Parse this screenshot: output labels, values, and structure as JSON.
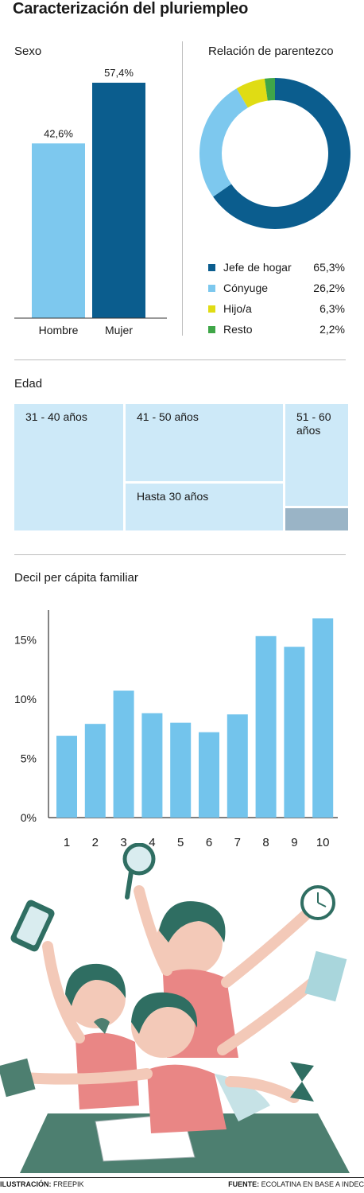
{
  "title": "Caracterización del pluriempleo",
  "sexo": {
    "label": "Sexo",
    "colors": [
      "#7dc8ee",
      "#0b5d8e"
    ],
    "chart_data": {
      "type": "bar",
      "categories": [
        "Hombre",
        "Mujer"
      ],
      "values": [
        42.6,
        57.4
      ],
      "value_labels": [
        "42,6%",
        "57,4%"
      ],
      "ylim": [
        0,
        57.4
      ]
    }
  },
  "parentesco": {
    "label": "Relación de parentezco",
    "chart_data": {
      "type": "pie",
      "donut": true,
      "categories": [
        "Jefe de hogar",
        "Cónyuge",
        "Hijo/a",
        "Resto"
      ],
      "values": [
        65.3,
        26.2,
        6.3,
        2.2
      ],
      "value_labels": [
        "65,3%",
        "26,2%",
        "6,3%",
        "2,2%"
      ],
      "colors": [
        "#0b5d8e",
        "#7dc8ee",
        "#e0dc14",
        "#3fa648"
      ]
    }
  },
  "edad": {
    "label": "Edad",
    "chart_data": {
      "type": "treemap",
      "categories": [
        "31 - 40 años",
        "41 - 50 años",
        "Hasta 30 años",
        "51 - 60 años",
        ""
      ],
      "colors": [
        "#cde9f8",
        "#cde9f8",
        "#cde9f8",
        "#cde9f8",
        "#9ab4c6"
      ]
    }
  },
  "decil": {
    "label": "Decil per cápita familiar",
    "color": "#73c4ec",
    "chart_data": {
      "type": "bar",
      "categories": [
        "1",
        "2",
        "3",
        "4",
        "5",
        "6",
        "7",
        "8",
        "9",
        "10"
      ],
      "values": [
        6.9,
        7.9,
        10.7,
        8.8,
        8.0,
        7.2,
        8.7,
        15.3,
        14.4,
        16.8
      ],
      "yticks": [
        "0%",
        "5%",
        "10%",
        "15%"
      ],
      "ytick_values": [
        0,
        5,
        10,
        15
      ],
      "ylim": [
        0,
        17.5
      ]
    }
  },
  "footer": {
    "left_label": "ILUSTRACIÓN:",
    "left_value": "FREEPIK",
    "right_label": "FUENTE:",
    "right_value": "ECOLATINA EN BASE A INDEC"
  }
}
